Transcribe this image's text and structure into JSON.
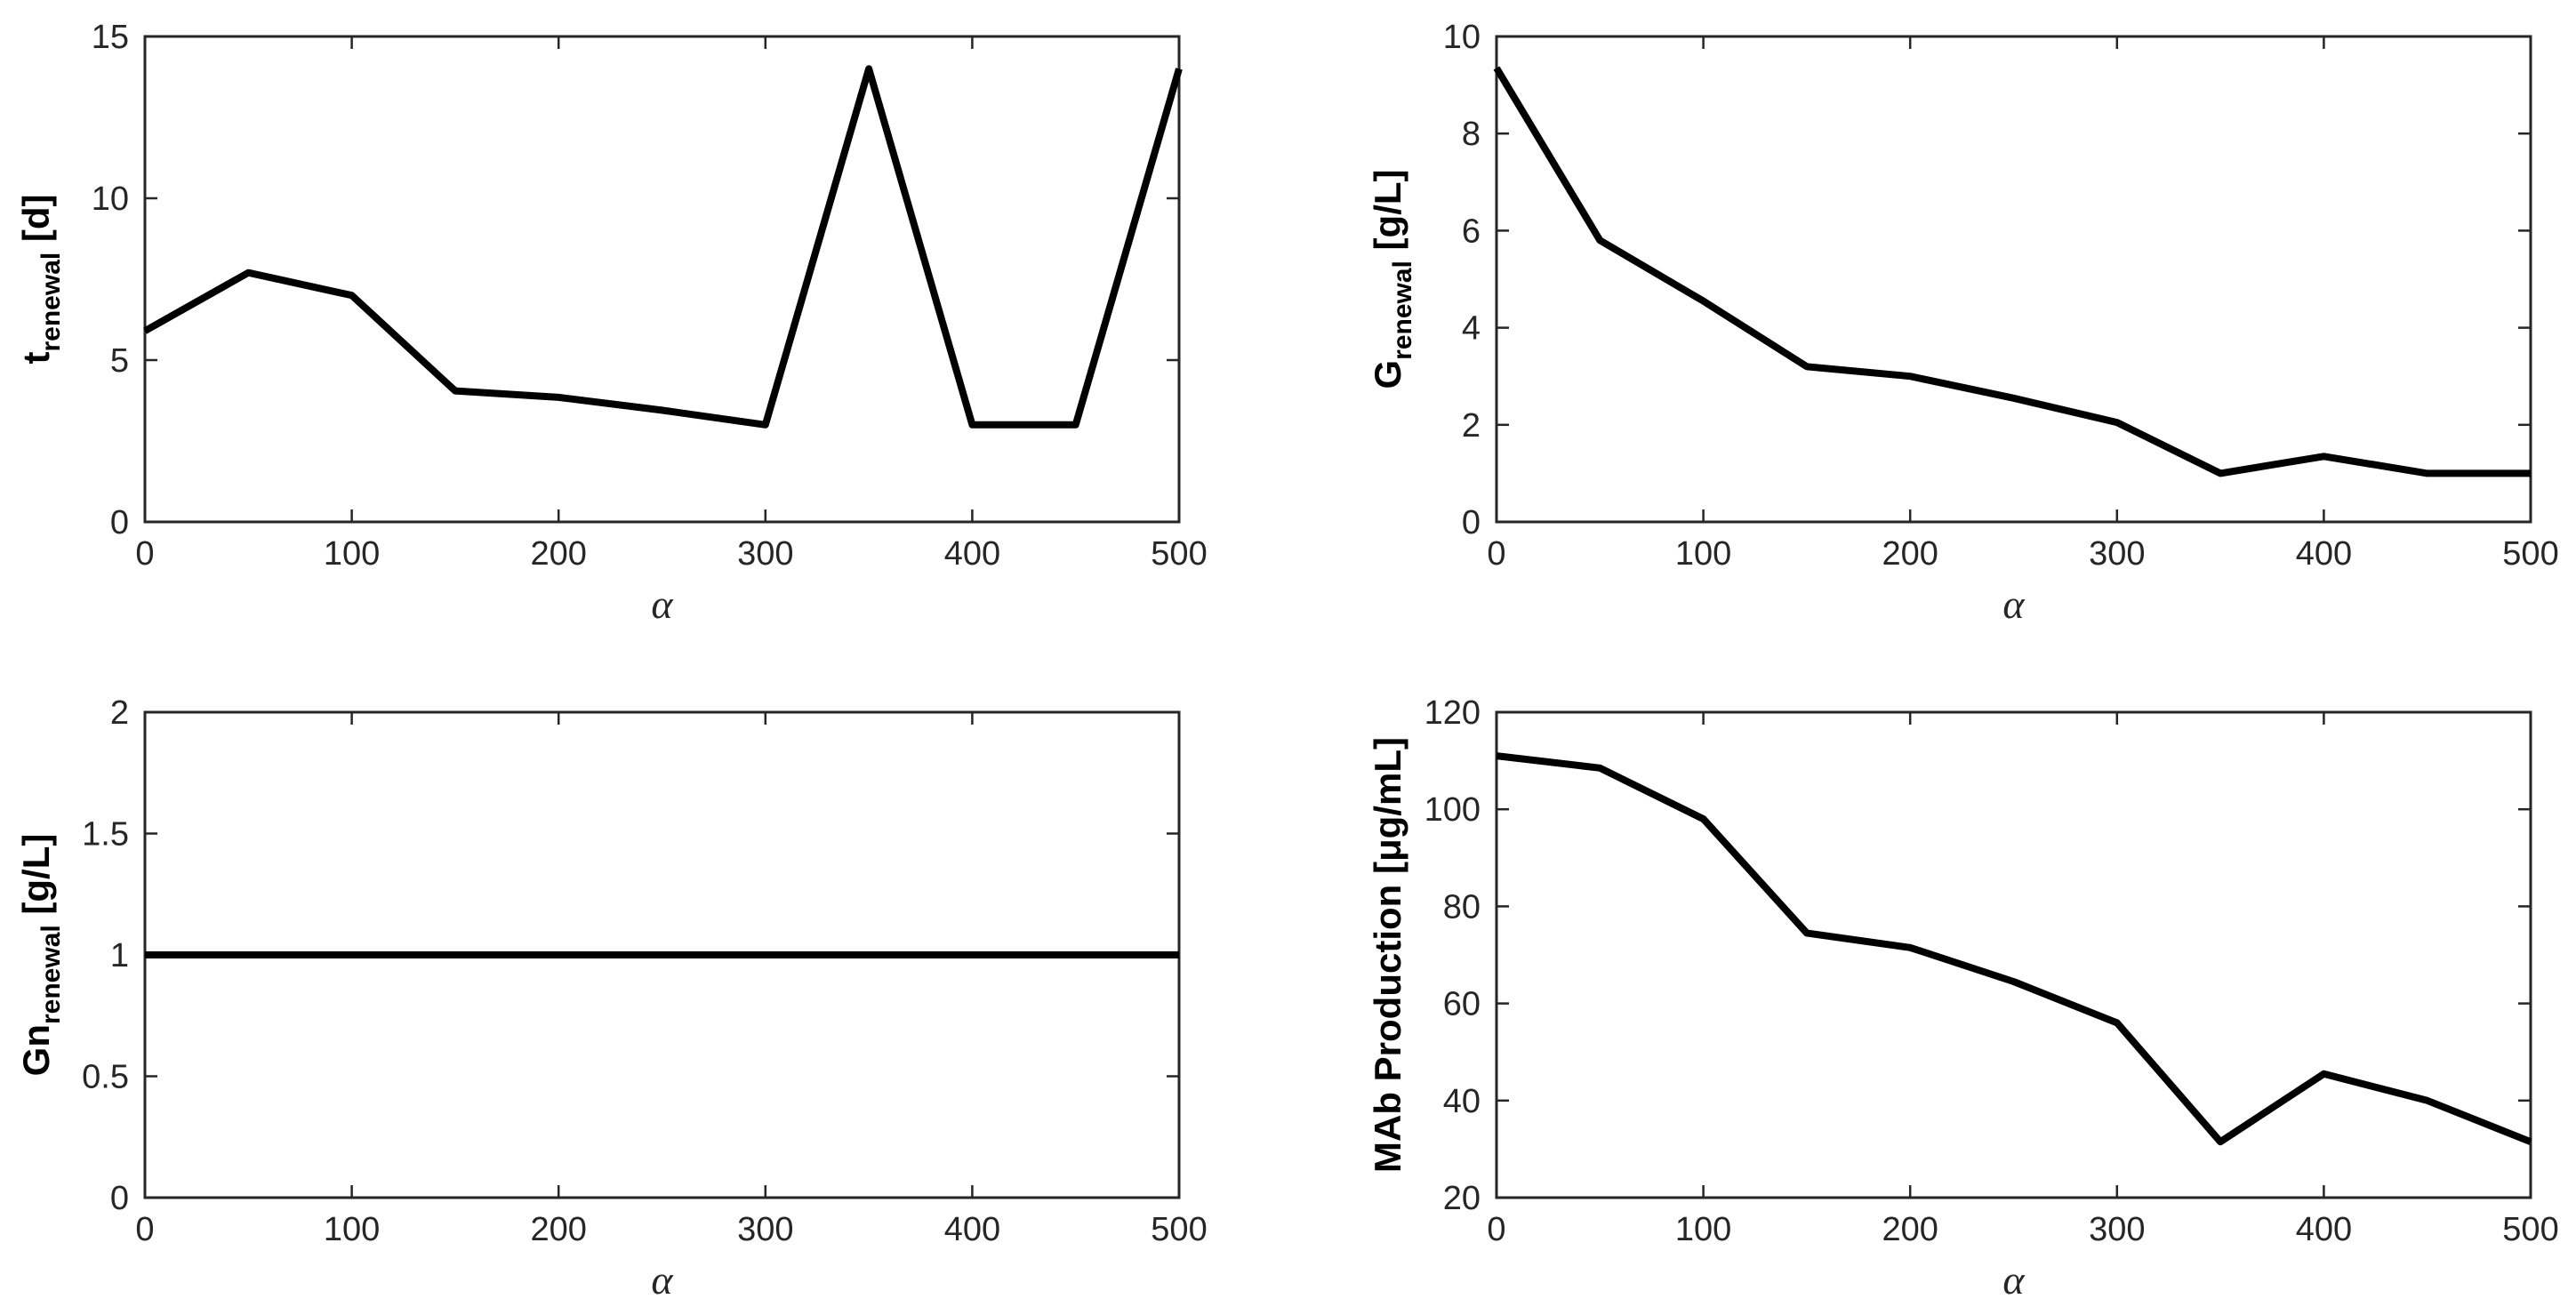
{
  "chart_data": [
    {
      "id": "t_renewal",
      "type": "line",
      "xlabel": "α",
      "ylabel": {
        "main": "t",
        "sub": "renewal",
        "unit": " [d]"
      },
      "xlim": [
        0,
        500
      ],
      "ylim": [
        0,
        15
      ],
      "xticks": [
        0,
        100,
        200,
        300,
        400,
        500
      ],
      "yticks": [
        0,
        5,
        10,
        15
      ],
      "ytick_labels": [
        "0",
        "5",
        "10",
        "15"
      ],
      "x": [
        0,
        50,
        100,
        150,
        200,
        250,
        300,
        350,
        400,
        450,
        500
      ],
      "y": [
        5.9,
        7.7,
        7.0,
        4.05,
        3.85,
        3.45,
        3.0,
        14.0,
        3.0,
        3.0,
        14.0
      ]
    },
    {
      "id": "G_renewal",
      "type": "line",
      "xlabel": "α",
      "ylabel": {
        "main": "G",
        "sub": "renewal",
        "unit": " [g/L]"
      },
      "xlim": [
        0,
        500
      ],
      "ylim": [
        0,
        10
      ],
      "xticks": [
        0,
        100,
        200,
        300,
        400,
        500
      ],
      "yticks": [
        0,
        2,
        4,
        6,
        8,
        10
      ],
      "ytick_labels": [
        "0",
        "2",
        "4",
        "6",
        "8",
        "10"
      ],
      "x": [
        0,
        50,
        100,
        150,
        200,
        250,
        300,
        350,
        400,
        450,
        500
      ],
      "y": [
        9.35,
        5.8,
        4.55,
        3.2,
        3.0,
        2.55,
        2.05,
        1.0,
        1.35,
        1.0,
        1.0
      ]
    },
    {
      "id": "Gn_renewal",
      "type": "line",
      "xlabel": "α",
      "ylabel": {
        "main": "Gn",
        "sub": "renewal",
        "unit": " [g/L]"
      },
      "xlim": [
        0,
        500
      ],
      "ylim": [
        0,
        2
      ],
      "xticks": [
        0,
        100,
        200,
        300,
        400,
        500
      ],
      "yticks": [
        0,
        0.5,
        1,
        1.5,
        2
      ],
      "ytick_labels": [
        "0",
        "0.5",
        "1",
        "1.5",
        "2"
      ],
      "x": [
        0,
        50,
        100,
        150,
        200,
        250,
        300,
        350,
        400,
        450,
        500
      ],
      "y": [
        1,
        1,
        1,
        1,
        1,
        1,
        1,
        1,
        1,
        1,
        1
      ]
    },
    {
      "id": "MAb_production",
      "type": "line",
      "xlabel": "α",
      "ylabel": {
        "main": "MAb Production [μg/mL]",
        "sub": "",
        "unit": ""
      },
      "xlim": [
        0,
        500
      ],
      "ylim": [
        20,
        120
      ],
      "xticks": [
        0,
        100,
        200,
        300,
        400,
        500
      ],
      "yticks": [
        20,
        40,
        60,
        80,
        100,
        120
      ],
      "ytick_labels": [
        "20",
        "40",
        "60",
        "80",
        "100",
        "120"
      ],
      "x": [
        0,
        50,
        100,
        150,
        200,
        250,
        300,
        350,
        400,
        450,
        500
      ],
      "y": [
        111,
        108.5,
        98,
        74.5,
        71.5,
        64.5,
        56,
        31.5,
        45.5,
        40,
        31.5
      ]
    }
  ],
  "colors": {
    "line": "#000000",
    "axis": "#262626",
    "background": "#ffffff"
  }
}
